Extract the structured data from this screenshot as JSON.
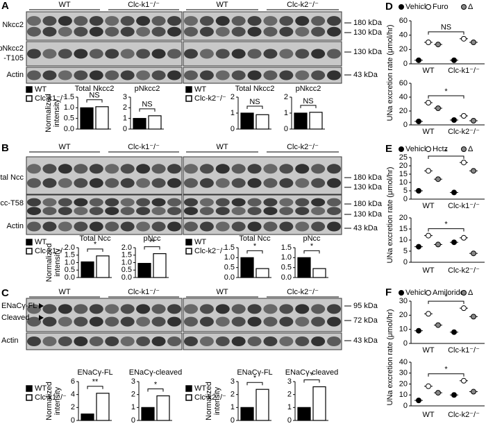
{
  "blot_panels": [
    {
      "letter": "A",
      "left_groups": [
        "WT",
        "Clc-k1⁻/⁻"
      ],
      "right_groups": [
        "WT",
        "Clc-k2⁻/⁻"
      ],
      "rows": [
        [
          "Total Nkcc2"
        ],
        [
          "pNkcc2",
          "-T105"
        ],
        [
          "Actin"
        ]
      ],
      "markers": [
        "180 kDa",
        "130 kDa",
        "130 kDa",
        "43 kDa"
      ],
      "left_legend": [
        "WT",
        "Clc-k1⁻/⁻"
      ],
      "right_legend": [
        "WT",
        "Clc-k2⁻/⁻"
      ]
    },
    {
      "letter": "B",
      "left_groups": [
        "WT",
        "Clc-k1⁻/⁻"
      ],
      "right_groups": [
        "WT",
        "Clc-k2⁻/⁻"
      ],
      "rows": [
        [
          "Total Ncc"
        ],
        [
          "pNcc-T58"
        ],
        [
          "Actin"
        ]
      ],
      "markers": [
        "180 kDa",
        "130 kDa",
        "180 kDa",
        "130 kDa",
        "43 kDa"
      ],
      "left_legend": [
        "WT",
        "Clc-k1⁻/⁻"
      ],
      "right_legend": [
        "WT",
        "Clc-k2⁻/⁻"
      ]
    },
    {
      "letter": "C",
      "left_groups": [
        "WT",
        "Clc-k1⁻/⁻"
      ],
      "right_groups": [
        "WT",
        "Clc-k2⁻/⁻"
      ],
      "rows": [
        [
          "ENaCγ-FL"
        ],
        [
          "Cleaved"
        ],
        [
          "Actin"
        ]
      ],
      "markers": [
        "95 kDa",
        "72 kDa",
        "43 kDa"
      ],
      "left_legend": [
        "WT",
        "Clc-k1⁻/⁻"
      ],
      "right_legend": [
        "WT",
        "Clc-k2⁻/⁻"
      ]
    }
  ],
  "chart_data": [
    {
      "type": "bar",
      "title": "Total Nkcc2",
      "values": [
        1.0,
        1.05
      ],
      "colors": [
        "#000000",
        "#ffffff"
      ],
      "ylim": [
        0,
        1.5
      ],
      "yticks": [
        {
          "value": 0,
          "label": "0.0"
        },
        0.5,
        {
          "value": 1,
          "label": "1.0"
        },
        1.5
      ],
      "annotation": "NS",
      "ylabel": [
        "Normalized",
        "intensity"
      ]
    },
    {
      "type": "bar",
      "title": "pNkcc2",
      "values": [
        1.0,
        1.25
      ],
      "colors": [
        "#000000",
        "#ffffff"
      ],
      "ylim": [
        0,
        3
      ],
      "yticks": [
        0,
        1,
        2,
        3
      ],
      "annotation": "NS"
    },
    {
      "type": "bar",
      "title": "Total Nkcc2",
      "values": [
        1.0,
        0.9
      ],
      "colors": [
        "#000000",
        "#ffffff"
      ],
      "ylim": [
        0,
        2
      ],
      "yticks": [
        0,
        1,
        2
      ],
      "annotation": "NS"
    },
    {
      "type": "bar",
      "title": "pNkcc2",
      "values": [
        1.0,
        1.05
      ],
      "colors": [
        "#000000",
        "#ffffff"
      ],
      "ylim": [
        0,
        2
      ],
      "yticks": [
        0,
        1,
        2
      ],
      "annotation": "NS"
    },
    {
      "type": "bar",
      "title": "Total Ncc",
      "values": [
        1.05,
        1.45
      ],
      "colors": [
        "#000000",
        "#ffffff"
      ],
      "ylim": [
        0,
        2
      ],
      "yticks": [
        {
          "value": 0,
          "label": "0.0"
        },
        0.5,
        {
          "value": 1,
          "label": "1.0"
        },
        1.5,
        {
          "value": 2,
          "label": "2.0"
        }
      ],
      "annotation": "*",
      "ylabel": [
        "Normalized",
        "intensity"
      ]
    },
    {
      "type": "bar",
      "title": "pNcc",
      "values": [
        0.95,
        1.6
      ],
      "colors": [
        "#000000",
        "#ffffff"
      ],
      "ylim": [
        0,
        2
      ],
      "yticks": [
        {
          "value": 0,
          "label": "0.0"
        },
        0.5,
        {
          "value": 1,
          "label": "1.0"
        },
        1.5,
        {
          "value": 2,
          "label": "2.0"
        }
      ],
      "annotation": "**"
    },
    {
      "type": "bar",
      "title": "Total Ncc",
      "values": [
        1.0,
        0.45
      ],
      "colors": [
        "#000000",
        "#ffffff"
      ],
      "ylim": [
        0,
        1.5
      ],
      "yticks": [
        {
          "value": 0,
          "label": "0.0"
        },
        0.5,
        {
          "value": 1,
          "label": "1.0"
        },
        1.5
      ],
      "annotation": "*"
    },
    {
      "type": "bar",
      "title": "pNcc",
      "values": [
        1.0,
        0.45
      ],
      "colors": [
        "#000000",
        "#ffffff"
      ],
      "ylim": [
        0,
        1.5
      ],
      "yticks": [
        {
          "value": 0,
          "label": "0.0"
        },
        0.5,
        {
          "value": 1,
          "label": "1.0"
        },
        1.5
      ],
      "annotation": "*"
    },
    {
      "type": "bar",
      "title": "ENaCγ-FL",
      "values": [
        1.0,
        4.2
      ],
      "colors": [
        "#000000",
        "#ffffff"
      ],
      "ylim": [
        0,
        6
      ],
      "yticks": [
        0,
        2,
        4,
        6
      ],
      "annotation": "**",
      "ylabel": [
        "Normalized",
        "intensity"
      ]
    },
    {
      "type": "bar",
      "title": "ENaCγ-cleaved",
      "values": [
        1.0,
        1.9
      ],
      "colors": [
        "#000000",
        "#ffffff"
      ],
      "ylim": [
        0,
        3
      ],
      "yticks": [
        0,
        1,
        2,
        3
      ],
      "annotation": "*"
    },
    {
      "type": "bar",
      "title": "ENaCγ-FL",
      "values": [
        1.0,
        2.4
      ],
      "colors": [
        "#000000",
        "#ffffff"
      ],
      "ylim": [
        0,
        3
      ],
      "yticks": [
        0,
        1,
        2,
        3
      ],
      "annotation": "*",
      "ylabel": [
        "Normalized",
        "intensity"
      ]
    },
    {
      "type": "bar",
      "title": "ENaCγ-cleaved",
      "values": [
        1.0,
        2.6
      ],
      "colors": [
        "#000000",
        "#ffffff"
      ],
      "ylim": [
        0,
        3
      ],
      "yticks": [
        0,
        1,
        2,
        3
      ],
      "annotation": "*"
    },
    {
      "type": "dot",
      "letter": "D",
      "legend": [
        "Vehicle",
        "Furo",
        "Δ"
      ],
      "ylabel": "UNa excretion rate (μmol/hr)",
      "subplots": [
        {
          "groups": [
            "WT",
            "Clc-k1⁻/⁻"
          ],
          "series": [
            [
              5,
              5
            ],
            [
              30,
              35
            ],
            [
              27,
              30
            ]
          ],
          "ylim": [
            0,
            60
          ],
          "yticks": [
            0,
            20,
            40,
            60
          ],
          "annotation": "NS"
        },
        {
          "groups": [
            "WT",
            "Clc-k2⁻/⁻"
          ],
          "series": [
            [
              5,
              7
            ],
            [
              32,
              13
            ],
            [
              24,
              6
            ]
          ],
          "ylim": [
            0,
            60
          ],
          "yticks": [
            0,
            20,
            40,
            60
          ],
          "annotation": "*"
        }
      ]
    },
    {
      "type": "dot",
      "letter": "E",
      "legend": [
        "Vehicle",
        "Hctz",
        "Δ"
      ],
      "ylabel": "UNa excretion rate (μmol/hr)",
      "subplots": [
        {
          "groups": [
            "WT",
            "Clc-k1⁻/⁻"
          ],
          "series": [
            [
              5,
              4
            ],
            [
              17,
              22
            ],
            [
              12,
              17
            ]
          ],
          "ylim": [
            0,
            25
          ],
          "yticks": [
            0,
            5,
            10,
            15,
            20,
            25
          ],
          "annotation": "*"
        },
        {
          "groups": [
            "WT",
            "Clc-k2⁻/⁻"
          ],
          "series": [
            [
              7,
              9
            ],
            [
              12,
              11
            ],
            [
              8,
              4
            ]
          ],
          "ylim": [
            0,
            20
          ],
          "yticks": [
            0,
            5,
            10,
            15,
            20
          ],
          "annotation": "*"
        }
      ]
    },
    {
      "type": "dot",
      "letter": "F",
      "legend": [
        "Vehicle",
        "Amiloride",
        "Δ"
      ],
      "ylabel": "UNa excretion rate (μmol/hr)",
      "subplots": [
        {
          "groups": [
            "WT",
            "Clc-k1⁻/⁻"
          ],
          "series": [
            [
              9,
              8
            ],
            [
              21,
              25
            ],
            [
              13,
              19
            ]
          ],
          "ylim": [
            0,
            30
          ],
          "yticks": [
            0,
            10,
            20,
            30
          ],
          "annotation": "*"
        },
        {
          "groups": [
            "WT",
            "Clc-k2⁻/⁻"
          ],
          "series": [
            [
              5,
              10
            ],
            [
              18,
              23
            ],
            [
              12,
              13
            ]
          ],
          "ylim": [
            0,
            40
          ],
          "yticks": [
            0,
            10,
            20,
            30,
            40
          ],
          "annotation": "*"
        }
      ]
    }
  ]
}
